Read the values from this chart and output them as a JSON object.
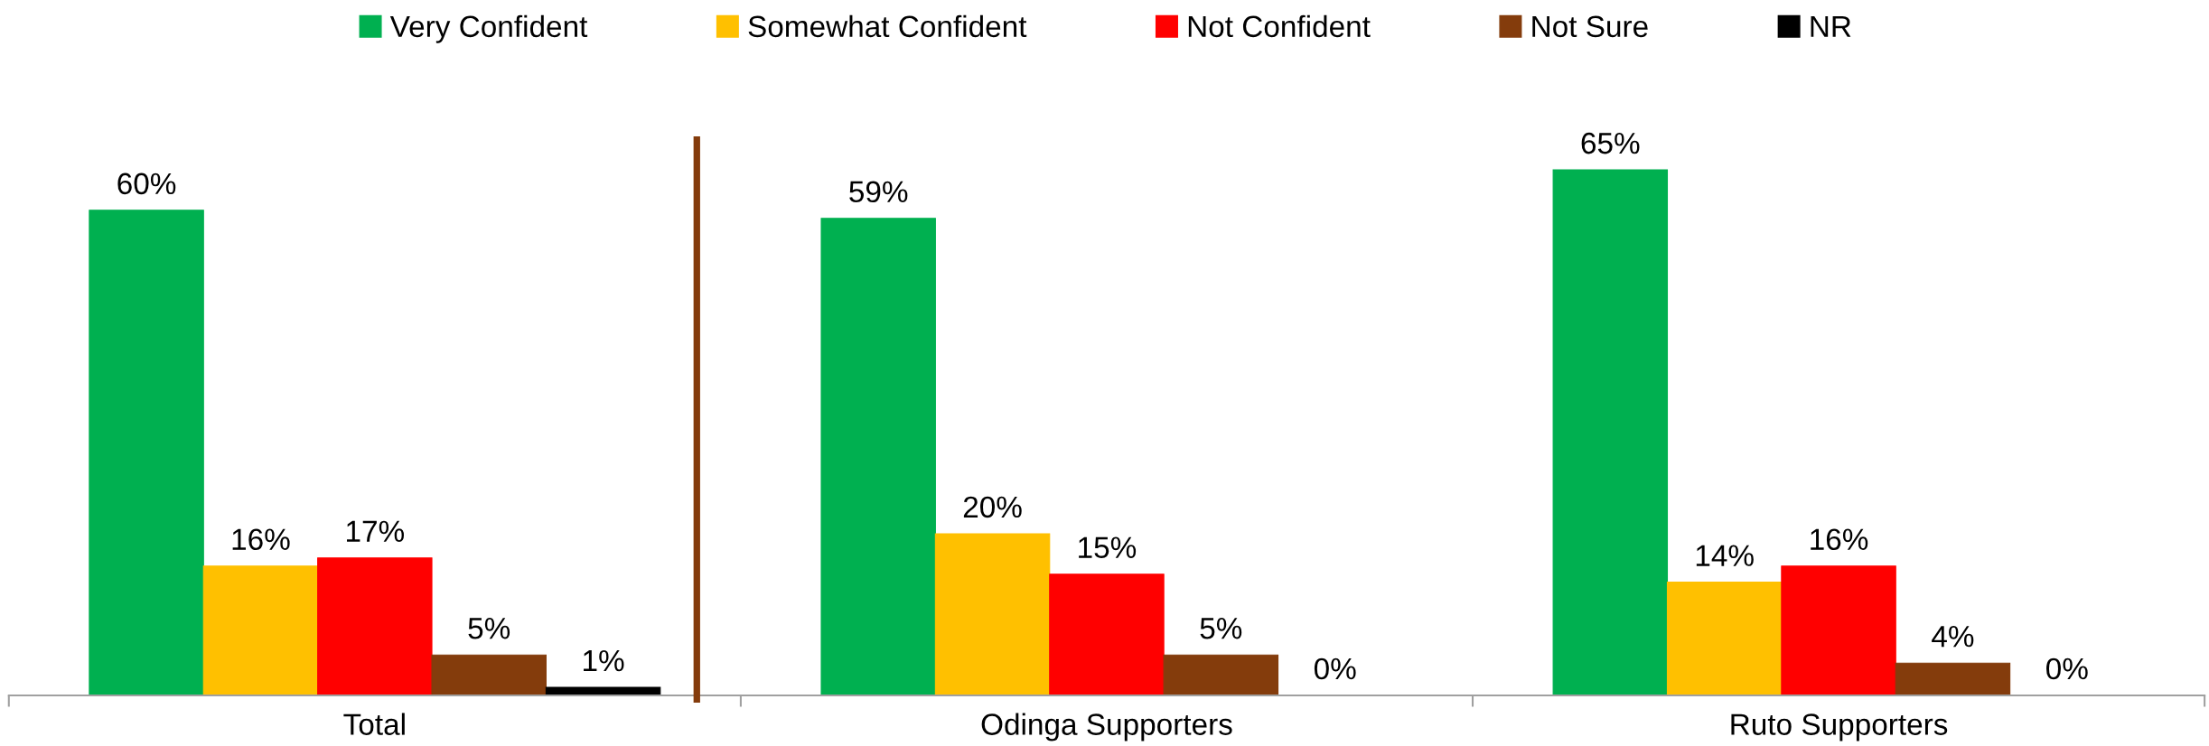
{
  "chart_data": {
    "type": "bar",
    "categories": [
      "Total",
      "Odinga Supporters",
      "Ruto Supporters"
    ],
    "series": [
      {
        "name": "Very Confident",
        "color": "#00b050",
        "values": [
          60,
          59,
          65
        ],
        "value_labels": [
          "60%",
          "59%",
          "65%"
        ]
      },
      {
        "name": "Somewhat Confident",
        "color": "#ffc000",
        "values": [
          16,
          20,
          14
        ],
        "value_labels": [
          "16%",
          "20%",
          "14%"
        ]
      },
      {
        "name": "Not Confident",
        "color": "#ff0000",
        "values": [
          17,
          15,
          16
        ],
        "value_labels": [
          "17%",
          "15%",
          "16%"
        ]
      },
      {
        "name": "Not Sure",
        "color": "#843c0c",
        "values": [
          5,
          5,
          4
        ],
        "value_labels": [
          "5%",
          "5%",
          "4%"
        ]
      },
      {
        "name": "NR",
        "color": "#000000",
        "values": [
          1,
          0,
          0
        ],
        "value_labels": [
          "1%",
          "0%",
          "0%"
        ]
      }
    ],
    "tick_labels": "x",
    "legend": "top"
  }
}
